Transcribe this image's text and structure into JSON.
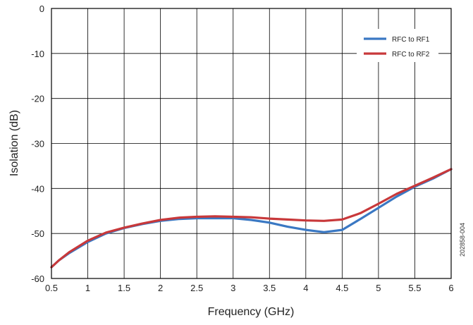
{
  "figure_id": "202858-004",
  "colors": {
    "series_1": "#3a78c3",
    "series_2": "#c8383a",
    "grid": "#000000",
    "background": "#ffffff"
  },
  "chart_data": {
    "type": "line",
    "title": "",
    "xlabel": "Frequency (GHz)",
    "ylabel": "Isolation (dB)",
    "xlim": [
      0.5,
      6
    ],
    "ylim": [
      -60,
      0
    ],
    "xticks": [
      0.5,
      1,
      1.5,
      2,
      2.5,
      3,
      3.5,
      4,
      4.5,
      5,
      5.5,
      6
    ],
    "xtick_labels": [
      "0.5",
      "1",
      "1.5",
      "2",
      "2.5",
      "3",
      "3.5",
      "4",
      "4.5",
      "5",
      "5.5",
      "6"
    ],
    "yticks": [
      0,
      -10,
      -20,
      -30,
      -40,
      -50,
      -60
    ],
    "ytick_labels": [
      "0",
      "-10",
      "-20",
      "-30",
      "-40",
      "-50",
      "-60"
    ],
    "grid": true,
    "legend_position": "top-right",
    "series": [
      {
        "name": "RFC to RF1",
        "color": "#3a78c3",
        "x": [
          0.5,
          0.6,
          0.75,
          1.0,
          1.25,
          1.5,
          1.75,
          2.0,
          2.25,
          2.5,
          2.75,
          3.0,
          3.25,
          3.5,
          3.75,
          4.0,
          4.25,
          4.5,
          4.75,
          5.0,
          5.25,
          5.5,
          5.75,
          6.0
        ],
        "y": [
          -57.5,
          -56.0,
          -54.3,
          -51.9,
          -50.0,
          -48.8,
          -47.9,
          -47.2,
          -46.8,
          -46.6,
          -46.6,
          -46.6,
          -47.0,
          -47.6,
          -48.5,
          -49.2,
          -49.7,
          -49.2,
          -46.8,
          -44.3,
          -41.8,
          -39.6,
          -37.8,
          -35.7
        ]
      },
      {
        "name": "RFC to RF2",
        "color": "#c8383a",
        "x": [
          0.5,
          0.6,
          0.75,
          1.0,
          1.25,
          1.5,
          1.75,
          2.0,
          2.25,
          2.5,
          2.75,
          3.0,
          3.25,
          3.5,
          3.75,
          4.0,
          4.25,
          4.5,
          4.75,
          5.0,
          5.25,
          5.5,
          5.75,
          6.0
        ],
        "y": [
          -57.5,
          -56.0,
          -54.1,
          -51.6,
          -49.8,
          -48.7,
          -47.8,
          -47.0,
          -46.5,
          -46.3,
          -46.2,
          -46.3,
          -46.4,
          -46.7,
          -46.9,
          -47.1,
          -47.2,
          -46.9,
          -45.5,
          -43.4,
          -41.2,
          -39.4,
          -37.6,
          -35.7
        ]
      }
    ]
  }
}
